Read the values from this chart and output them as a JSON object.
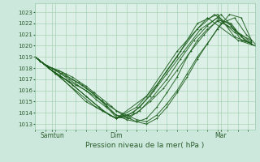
{
  "xlabel": "Pression niveau de la mer( hPa )",
  "bg_color": "#cce8dc",
  "plot_bg_color": "#ddf0e8",
  "line_color": "#1a5c1a",
  "grid_color": "#99ccaa",
  "text_color": "#2a5c2a",
  "ylim": [
    1012.5,
    1023.8
  ],
  "xlim": [
    0,
    130
  ],
  "x_ticks": [
    10,
    48,
    110
  ],
  "x_tick_labels": [
    "Samtun",
    "Dim",
    "Mar"
  ],
  "ytick_start": 1013,
  "ytick_end": 1023,
  "ytick_step": 1,
  "series": [
    {
      "x": [
        0,
        2,
        4,
        7,
        10,
        14,
        18,
        22,
        26,
        30,
        35,
        40,
        45,
        48,
        52,
        56,
        60,
        66,
        72,
        78,
        84,
        90,
        96,
        102,
        108,
        115,
        122,
        128
      ],
      "y": [
        1019,
        1018.8,
        1018.5,
        1018.2,
        1018,
        1017.8,
        1017.5,
        1017.2,
        1016.8,
        1016.4,
        1015.8,
        1015.2,
        1014.6,
        1014.2,
        1013.8,
        1013.5,
        1013.2,
        1013.0,
        1013.5,
        1014.5,
        1015.8,
        1017.2,
        1018.8,
        1020.2,
        1021.5,
        1022.8,
        1022.5,
        1020.5
      ]
    },
    {
      "x": [
        0,
        3,
        7,
        10,
        15,
        20,
        25,
        30,
        36,
        42,
        48,
        54,
        60,
        66,
        72,
        78,
        84,
        90,
        96,
        102,
        110,
        118,
        125,
        130
      ],
      "y": [
        1019,
        1018.6,
        1018.2,
        1018,
        1017.5,
        1017,
        1016.5,
        1016,
        1015.4,
        1014.8,
        1014.2,
        1013.8,
        1013.4,
        1013.2,
        1013.8,
        1014.8,
        1016,
        1017.5,
        1019,
        1020.2,
        1022,
        1022.5,
        1021,
        1020.2
      ]
    },
    {
      "x": [
        0,
        4,
        8,
        12,
        18,
        24,
        30,
        36,
        42,
        48,
        54,
        60,
        66,
        72,
        78,
        84,
        90,
        96,
        102,
        108,
        114,
        122,
        128
      ],
      "y": [
        1019,
        1018.5,
        1018,
        1017.5,
        1017,
        1016.5,
        1016,
        1015.2,
        1014.5,
        1013.8,
        1013.4,
        1013.2,
        1013.5,
        1014.5,
        1015.8,
        1017.2,
        1019,
        1020.5,
        1021.5,
        1022.2,
        1021.8,
        1021,
        1020.3
      ]
    },
    {
      "x": [
        0,
        5,
        10,
        16,
        22,
        28,
        34,
        40,
        48,
        54,
        60,
        68,
        76,
        84,
        92,
        100,
        108,
        116,
        122,
        128
      ],
      "y": [
        1019,
        1018.4,
        1018,
        1017.6,
        1017,
        1016.5,
        1015.8,
        1015,
        1013.8,
        1013.6,
        1014,
        1015,
        1016.2,
        1017.8,
        1019.5,
        1021,
        1022.3,
        1022,
        1020.8,
        1020.2
      ]
    },
    {
      "x": [
        0,
        6,
        12,
        18,
        24,
        30,
        36,
        42,
        48,
        55,
        62,
        70,
        78,
        86,
        94,
        102,
        110,
        118,
        124,
        130
      ],
      "y": [
        1019,
        1018.3,
        1017.8,
        1017.3,
        1016.8,
        1016.2,
        1015.5,
        1014.6,
        1013.6,
        1013.5,
        1014.2,
        1015.5,
        1017.0,
        1018.8,
        1020.5,
        1021.8,
        1022.8,
        1021.5,
        1020.5,
        1020.0
      ]
    },
    {
      "x": [
        0,
        8,
        15,
        22,
        30,
        38,
        44,
        48,
        55,
        62,
        70,
        78,
        86,
        96,
        106,
        116,
        122,
        128
      ],
      "y": [
        1019,
        1018.0,
        1017.3,
        1016.5,
        1015.5,
        1014.5,
        1013.8,
        1013.5,
        1013.8,
        1014.5,
        1016.0,
        1017.8,
        1019.5,
        1021.5,
        1022.8,
        1021.8,
        1020.5,
        1020.2
      ]
    },
    {
      "x": [
        0,
        10,
        20,
        30,
        40,
        48,
        58,
        68,
        78,
        88,
        98,
        108,
        118,
        128
      ],
      "y": [
        1019,
        1017.8,
        1016.8,
        1015.5,
        1014.2,
        1013.5,
        1014.0,
        1015.5,
        1017.5,
        1019.5,
        1021.5,
        1022.5,
        1021.2,
        1020.5
      ]
    },
    {
      "x": [
        0,
        12,
        24,
        36,
        48,
        60,
        72,
        84,
        96,
        108,
        118,
        128
      ],
      "y": [
        1019,
        1017.5,
        1016.0,
        1014.5,
        1013.5,
        1014.5,
        1016.5,
        1019.0,
        1022.0,
        1022.8,
        1020.8,
        1020.2
      ]
    },
    {
      "x": [
        0,
        15,
        30,
        48,
        66,
        84,
        102,
        120,
        130
      ],
      "y": [
        1019,
        1017.2,
        1015.0,
        1013.5,
        1015.5,
        1019.5,
        1022.5,
        1020.5,
        1020.0
      ]
    }
  ]
}
